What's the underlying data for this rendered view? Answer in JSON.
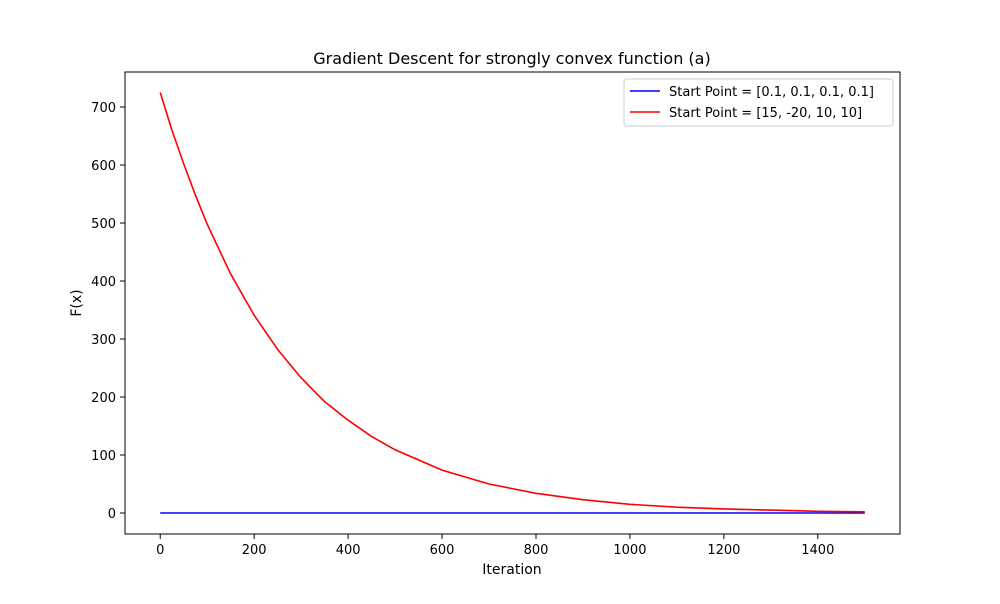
{
  "chart_data": {
    "type": "line",
    "title": "Gradient Descent for strongly convex function (a)",
    "xlabel": "Iteration",
    "ylabel": "F(x)",
    "xlim": [
      -75,
      1575
    ],
    "ylim": [
      -36.2,
      760.4
    ],
    "xticks": [
      0,
      200,
      400,
      600,
      800,
      1000,
      1200,
      1400
    ],
    "yticks": [
      0,
      100,
      200,
      300,
      400,
      500,
      600,
      700
    ],
    "grid": false,
    "legend_position": "top-right",
    "series": [
      {
        "name": "Start Point = [0.1, 0.1, 0.1, 0.1]",
        "color": "#0000ff",
        "x": [
          0,
          100,
          200,
          300,
          400,
          500,
          600,
          700,
          800,
          900,
          1000,
          1100,
          1200,
          1300,
          1400,
          1500
        ],
        "y": [
          0.02,
          0.01,
          0.01,
          0.0,
          0.0,
          0.0,
          0.0,
          0.0,
          0.0,
          0.0,
          0.0,
          0.0,
          0.0,
          0.0,
          0.0,
          0.0
        ]
      },
      {
        "name": "Start Point = [15, -20, 10, 10]",
        "color": "#ff0000",
        "x": [
          0,
          25,
          50,
          75,
          100,
          150,
          200,
          250,
          300,
          350,
          400,
          450,
          500,
          600,
          700,
          800,
          900,
          1000,
          1100,
          1200,
          1300,
          1400,
          1500
        ],
        "y": [
          725,
          660,
          602,
          548,
          498,
          412,
          341,
          282,
          233,
          192,
          160,
          132,
          109,
          74,
          50,
          34,
          23,
          15,
          10,
          7,
          5,
          3,
          2
        ]
      }
    ]
  }
}
